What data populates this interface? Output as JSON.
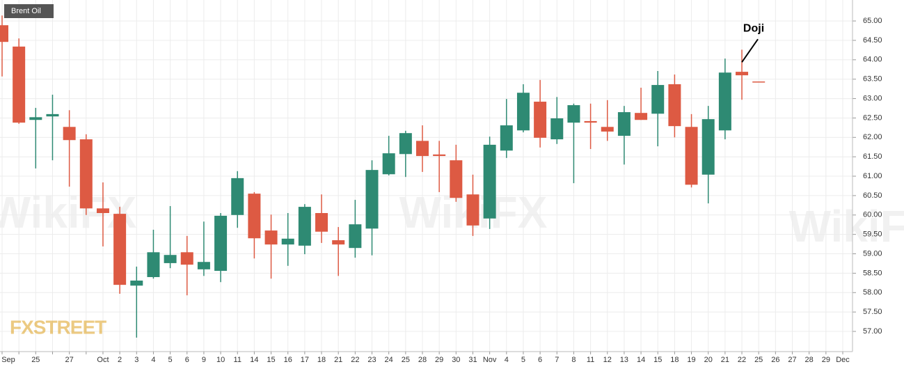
{
  "chart_data": {
    "type": "candlestick",
    "title": "Brent Oil",
    "logo": "FXSTREET",
    "watermark": "WikiFX",
    "annotation": "Doji",
    "up_color": "#2e8a73",
    "down_color": "#dd5a43",
    "grid": true,
    "categories": [
      "Sep",
      null,
      "25",
      null,
      "27",
      null,
      "Oct",
      "2",
      "3",
      "4",
      "5",
      "6",
      "9",
      "10",
      "11",
      "14",
      "15",
      "16",
      "17",
      "18",
      "21",
      "22",
      "23",
      "24",
      "25",
      "28",
      "29",
      "30",
      "31",
      "Nov",
      "4",
      "5",
      "6",
      "7",
      "8",
      "11",
      "12",
      "13",
      "14",
      "15",
      "18",
      "19",
      "20",
      "21",
      "22",
      "25",
      "26",
      "27",
      "28",
      "29",
      "Dec"
    ],
    "open": [
      64.89,
      64.34,
      62.45,
      62.54,
      62.27,
      61.95,
      60.17,
      60.03,
      58.18,
      58.4,
      58.76,
      59.04,
      58.6,
      58.56,
      60.0,
      60.55,
      59.6,
      59.24,
      59.21,
      60.05,
      59.35,
      59.15,
      59.65,
      61.05,
      61.57,
      61.91,
      61.56,
      61.41,
      60.53,
      59.91,
      61.66,
      62.18,
      62.92,
      61.95,
      62.38,
      62.42,
      62.27,
      62.04,
      62.63,
      62.61,
      63.37,
      62.27,
      61.04,
      62.18,
      63.69,
      63.44,
      null,
      null,
      null,
      null,
      null
    ],
    "high": [
      65.14,
      64.55,
      62.76,
      63.1,
      62.7,
      62.08,
      60.84,
      60.21,
      58.67,
      59.62,
      60.23,
      59.46,
      59.83,
      60.05,
      61.13,
      60.59,
      60.01,
      60.05,
      60.28,
      60.53,
      59.69,
      60.39,
      61.41,
      62.04,
      62.17,
      62.31,
      61.91,
      61.81,
      61.04,
      62.02,
      62.99,
      63.37,
      63.48,
      63.04,
      62.87,
      62.87,
      62.96,
      62.81,
      63.28,
      63.71,
      63.62,
      62.6,
      62.81,
      64.03,
      64.26,
      63.44,
      null,
      null,
      null,
      null,
      null
    ],
    "low": [
      63.57,
      62.35,
      61.2,
      61.41,
      60.73,
      60.0,
      59.19,
      57.97,
      56.84,
      58.36,
      58.63,
      57.93,
      58.43,
      58.27,
      59.67,
      58.88,
      58.36,
      58.69,
      58.99,
      59.28,
      58.43,
      58.9,
      58.96,
      61.02,
      60.98,
      61.11,
      60.59,
      60.34,
      59.46,
      59.64,
      61.47,
      62.13,
      61.74,
      61.83,
      60.82,
      61.7,
      61.91,
      61.3,
      62.45,
      61.77,
      62.0,
      60.71,
      60.3,
      61.95,
      62.97,
      63.44,
      null,
      null,
      null,
      null,
      null
    ],
    "close": [
      64.46,
      62.38,
      62.52,
      62.6,
      61.93,
      60.17,
      60.05,
      58.2,
      58.31,
      59.04,
      58.97,
      58.72,
      58.79,
      59.98,
      60.95,
      59.4,
      59.24,
      59.39,
      60.21,
      59.57,
      59.24,
      59.76,
      61.16,
      61.59,
      62.11,
      61.52,
      61.52,
      60.44,
      59.73,
      61.81,
      62.31,
      63.15,
      61.99,
      62.49,
      62.83,
      62.38,
      62.15,
      62.65,
      62.45,
      63.35,
      62.29,
      60.78,
      62.47,
      63.67,
      63.6,
      63.44,
      null,
      null,
      null,
      null,
      null
    ],
    "ylim": [
      56.48,
      65.54
    ],
    "yticks": [
      {
        "value": 57,
        "label": "57.00"
      },
      {
        "value": 57.5,
        "label": "57.50"
      },
      {
        "value": 58,
        "label": "58.00"
      },
      {
        "value": 58.5,
        "label": "58.50"
      },
      {
        "value": 59,
        "label": "59.00"
      },
      {
        "value": 59.5,
        "label": "59.50"
      },
      {
        "value": 60,
        "label": "60.00"
      },
      {
        "value": 60.5,
        "label": "60.50"
      },
      {
        "value": 61,
        "label": "61.00"
      },
      {
        "value": 61.5,
        "label": "61.50"
      },
      {
        "value": 62,
        "label": "62.00"
      },
      {
        "value": 62.5,
        "label": "62.50"
      },
      {
        "value": 63,
        "label": "63.00"
      },
      {
        "value": 63.5,
        "label": "63.50"
      },
      {
        "value": 64,
        "label": "64.00"
      },
      {
        "value": 64.5,
        "label": "64.50"
      },
      {
        "value": 65,
        "label": "65.00"
      }
    ]
  }
}
